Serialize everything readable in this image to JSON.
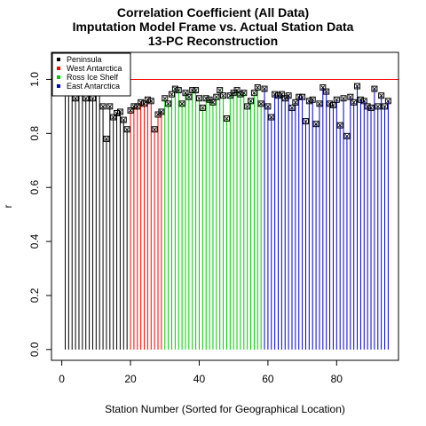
{
  "chart_data": {
    "type": "bar",
    "title": [
      "Correlation Coefficient (All Data)",
      "Imputation Model Frame vs. Actual Station Data",
      "13-PC Reconstruction"
    ],
    "xlabel": "Station Number (Sorted for Geographical Location)",
    "ylabel": "r",
    "xlim": [
      -3,
      98
    ],
    "ylim": [
      -0.04,
      1.1
    ],
    "xticks": [
      0,
      20,
      40,
      60,
      80
    ],
    "yticks": [
      0.0,
      0.2,
      0.4,
      0.6,
      0.8,
      1.0
    ],
    "reference_line": {
      "y": 1.0,
      "color": "#ff0000"
    },
    "legend": {
      "position": "top-left",
      "entries": [
        {
          "label": "Peninsula",
          "color": "#000000"
        },
        {
          "label": "West Antarctica",
          "color": "#ff0000"
        },
        {
          "label": "Ross Ice Shelf",
          "color": "#00cd00"
        },
        {
          "label": "East Antarctica",
          "color": "#0000cd"
        }
      ]
    },
    "series": [
      {
        "name": "Peninsula",
        "color": "#000000",
        "x": [
          1,
          2,
          3,
          4,
          5,
          6,
          7,
          8,
          9,
          10,
          11,
          12,
          13,
          14,
          15,
          16,
          17,
          18,
          19
        ],
        "values": [
          0.96,
          0.965,
          0.95,
          0.93,
          0.96,
          0.965,
          0.93,
          0.97,
          0.93,
          0.96,
          0.955,
          0.9,
          0.78,
          0.9,
          0.86,
          0.875,
          0.88,
          0.85,
          0.815
        ]
      },
      {
        "name": "West Antarctica",
        "color": "#ff0000",
        "x": [
          20,
          21,
          22,
          23,
          24,
          25,
          26,
          27,
          28,
          29
        ],
        "values": [
          0.885,
          0.9,
          0.9,
          0.915,
          0.91,
          0.925,
          0.92,
          0.815,
          0.87,
          0.88
        ]
      },
      {
        "name": "Ross Ice Shelf",
        "color": "#00cd00",
        "x": [
          30,
          31,
          32,
          33,
          34,
          35,
          36,
          37,
          38,
          39,
          40,
          41,
          42,
          43,
          44,
          45,
          46,
          47,
          48,
          49,
          50,
          51,
          52,
          53,
          54,
          55,
          56,
          57,
          58
        ],
        "values": [
          0.93,
          0.91,
          0.945,
          0.965,
          0.96,
          0.91,
          0.95,
          0.935,
          0.96,
          0.96,
          0.93,
          0.895,
          0.93,
          0.925,
          0.915,
          0.935,
          0.96,
          0.94,
          0.855,
          0.94,
          0.95,
          0.96,
          0.945,
          0.95,
          0.9,
          0.92,
          0.95,
          0.97,
          0.91
        ]
      },
      {
        "name": "East Antarctica",
        "color": "#0000cd",
        "x": [
          59,
          60,
          61,
          62,
          63,
          64,
          65,
          66,
          67,
          68,
          69,
          70,
          71,
          72,
          73,
          74,
          75,
          76,
          77,
          78,
          79,
          80,
          81,
          82,
          83,
          84,
          85,
          86,
          87,
          88,
          89,
          90,
          91,
          92,
          93,
          94,
          95
        ],
        "values": [
          0.965,
          0.9,
          0.86,
          0.945,
          0.94,
          0.945,
          0.93,
          0.94,
          0.895,
          0.915,
          0.935,
          0.935,
          0.845,
          0.92,
          0.925,
          0.835,
          0.91,
          0.97,
          0.955,
          0.91,
          0.905,
          0.925,
          0.83,
          0.93,
          0.79,
          0.935,
          0.915,
          0.975,
          0.925,
          0.92,
          0.9,
          0.895,
          0.965,
          0.9,
          0.94,
          0.9,
          0.92
        ]
      }
    ]
  }
}
